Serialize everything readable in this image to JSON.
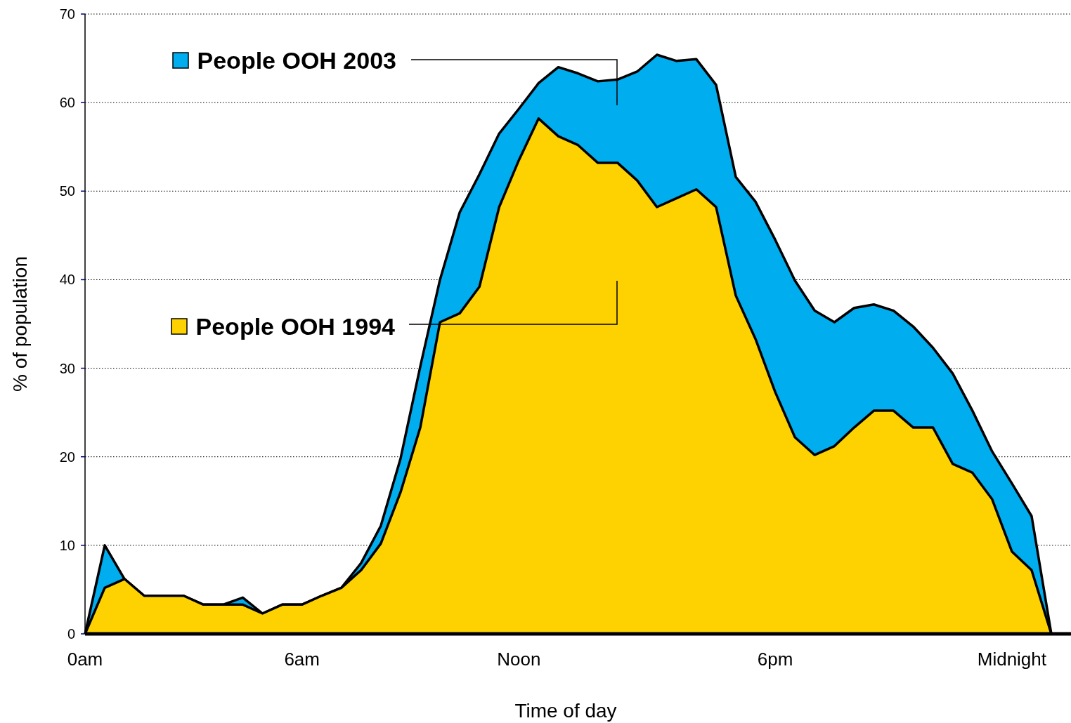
{
  "chart_data": {
    "type": "area",
    "xlabel": "Time of day",
    "ylabel": "% of population",
    "categories": [
      "0am",
      null,
      null,
      null,
      null,
      null,
      null,
      null,
      null,
      null,
      null,
      "6am",
      null,
      null,
      null,
      null,
      null,
      null,
      null,
      null,
      null,
      null,
      "Noon",
      null,
      null,
      null,
      null,
      null,
      null,
      null,
      null,
      null,
      null,
      null,
      null,
      "6pm",
      null,
      null,
      null,
      null,
      null,
      null,
      null,
      null,
      null,
      null,
      null,
      "Midnight",
      null,
      null
    ],
    "series": [
      {
        "name": "People OOH 2003",
        "color": "#00adef",
        "values": [
          0,
          10,
          6.2,
          4.3,
          4.3,
          4.3,
          3.3,
          3.3,
          4.1,
          2.3,
          3.3,
          3.3,
          4.3,
          5.2,
          8,
          12.2,
          19.8,
          30.2,
          40,
          47.6,
          51.9,
          56.5,
          59.3,
          62.2,
          64,
          63.3,
          62.4,
          62.6,
          63.5,
          65.4,
          64.7,
          64.9,
          62,
          51.6,
          48.8,
          44.5,
          39.9,
          36.5,
          35.2,
          36.8,
          37.2,
          36.5,
          34.7,
          32.3,
          29.4,
          25.2,
          20.6,
          17,
          13.3,
          0
        ]
      },
      {
        "name": "People OOH 1994",
        "color": "#fed200",
        "values": [
          0,
          5.2,
          6.2,
          4.3,
          4.3,
          4.3,
          3.3,
          3.3,
          3.3,
          2.3,
          3.3,
          3.3,
          4.3,
          5.2,
          7.2,
          10.2,
          16,
          23.3,
          35.2,
          36.2,
          39.2,
          48.2,
          53.5,
          58.2,
          56.2,
          55.2,
          53.2,
          53.2,
          51.2,
          48.2,
          49.2,
          50.2,
          48.2,
          38.2,
          33.3,
          27.3,
          22.2,
          20.2,
          21.2,
          23.3,
          25.2,
          25.2,
          23.3,
          23.3,
          19.2,
          18.2,
          15.2,
          9.3,
          7.2,
          0
        ]
      }
    ],
    "ylim": [
      0,
      70
    ],
    "yticks": [
      0,
      10,
      20,
      30,
      40,
      50,
      60,
      70
    ],
    "grid": "y",
    "legend": "top left"
  }
}
